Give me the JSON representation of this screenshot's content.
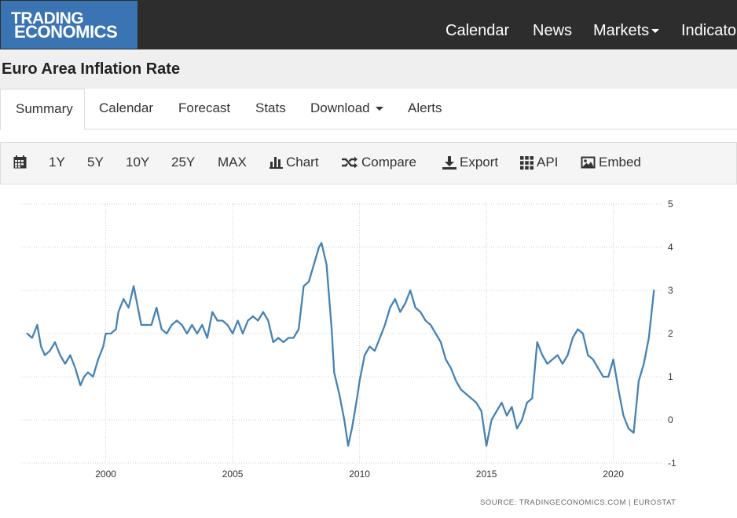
{
  "header": {
    "logo_line1": "TRADING",
    "logo_line2": "ECONOMICS",
    "nav": [
      "Calendar",
      "News",
      "Markets",
      "Indicato"
    ]
  },
  "page": {
    "title": "Euro Area Inflation Rate"
  },
  "tabs": [
    "Summary",
    "Calendar",
    "Forecast",
    "Stats",
    "Download",
    "Alerts"
  ],
  "toolbar": {
    "ranges": [
      "1Y",
      "5Y",
      "10Y",
      "25Y",
      "MAX"
    ],
    "chart": "Chart",
    "compare": "Compare",
    "export": "Export",
    "api": "API",
    "embed": "Embed"
  },
  "source": "SOURCE: TRADINGECONOMICS.COM  |  EUROSTAT",
  "colors": {
    "line": "#4682b4",
    "header_bg": "#2d2d2d",
    "logo_bg": "#3b74b2"
  },
  "chart_data": {
    "type": "line",
    "title": "",
    "xlabel": "",
    "ylabel": "",
    "xlim": [
      1996.7,
      2021.9
    ],
    "ylim": [
      -1,
      5
    ],
    "x_ticks": [
      2000,
      2005,
      2010,
      2015,
      2020
    ],
    "x_tick_labels": [
      "2000",
      "2005",
      "2010",
      "2015",
      "2020"
    ],
    "y_ticks": [
      -1,
      0,
      1,
      2,
      3,
      4,
      5
    ],
    "y_tick_labels": [
      "-1",
      "0",
      "1",
      "2",
      "3",
      "4",
      "5"
    ],
    "y_axis_position": "right",
    "grid": true,
    "series": [
      {
        "name": "",
        "x": [
          1996.9,
          1997.1,
          1997.3,
          1997.45,
          1997.6,
          1997.8,
          1998.0,
          1998.2,
          1998.4,
          1998.6,
          1998.8,
          1999.0,
          1999.15,
          1999.3,
          1999.5,
          1999.7,
          1999.9,
          2000.0,
          2000.2,
          2000.4,
          2000.5,
          2000.7,
          2000.9,
          2001.1,
          2001.3,
          2001.4,
          2001.6,
          2001.8,
          2002.0,
          2002.2,
          2002.4,
          2002.6,
          2002.8,
          2003.0,
          2003.2,
          2003.4,
          2003.6,
          2003.8,
          2004.0,
          2004.2,
          2004.4,
          2004.6,
          2004.8,
          2005.0,
          2005.2,
          2005.4,
          2005.6,
          2005.8,
          2006.0,
          2006.2,
          2006.4,
          2006.6,
          2006.8,
          2007.0,
          2007.2,
          2007.4,
          2007.6,
          2007.8,
          2008.0,
          2008.2,
          2008.4,
          2008.5,
          2008.7,
          2008.9,
          2009.0,
          2009.2,
          2009.4,
          2009.55,
          2009.7,
          2009.9,
          2010.0,
          2010.2,
          2010.4,
          2010.6,
          2010.8,
          2011.0,
          2011.2,
          2011.4,
          2011.6,
          2011.8,
          2012.0,
          2012.2,
          2012.4,
          2012.6,
          2012.8,
          2013.0,
          2013.2,
          2013.4,
          2013.6,
          2013.8,
          2014.0,
          2014.2,
          2014.4,
          2014.6,
          2014.8,
          2015.0,
          2015.2,
          2015.4,
          2015.6,
          2015.8,
          2016.0,
          2016.2,
          2016.4,
          2016.6,
          2016.8,
          2017.0,
          2017.2,
          2017.4,
          2017.6,
          2017.8,
          2018.0,
          2018.2,
          2018.4,
          2018.6,
          2018.8,
          2019.0,
          2019.2,
          2019.4,
          2019.6,
          2019.8,
          2020.0,
          2020.2,
          2020.4,
          2020.6,
          2020.8,
          2021.0,
          2021.2,
          2021.4,
          2021.6
        ],
        "y": [
          2.0,
          1.9,
          2.2,
          1.7,
          1.5,
          1.6,
          1.8,
          1.5,
          1.3,
          1.5,
          1.2,
          0.8,
          1.0,
          1.1,
          1.0,
          1.4,
          1.7,
          2.0,
          2.0,
          2.1,
          2.5,
          2.8,
          2.6,
          3.1,
          2.5,
          2.2,
          2.2,
          2.2,
          2.6,
          2.1,
          2.0,
          2.2,
          2.3,
          2.2,
          2.0,
          2.2,
          2.0,
          2.2,
          1.9,
          2.5,
          2.3,
          2.3,
          2.2,
          2.0,
          2.3,
          2.0,
          2.3,
          2.4,
          2.3,
          2.5,
          2.3,
          1.8,
          1.9,
          1.8,
          1.9,
          1.9,
          2.1,
          3.1,
          3.2,
          3.6,
          4.0,
          4.1,
          3.6,
          2.1,
          1.1,
          0.6,
          0.0,
          -0.6,
          -0.2,
          0.5,
          0.9,
          1.5,
          1.7,
          1.6,
          1.9,
          2.2,
          2.6,
          2.8,
          2.5,
          2.7,
          3.0,
          2.6,
          2.5,
          2.3,
          2.2,
          2.0,
          1.8,
          1.4,
          1.2,
          0.9,
          0.7,
          0.6,
          0.5,
          0.4,
          0.2,
          -0.6,
          0.0,
          0.2,
          0.4,
          0.1,
          0.3,
          -0.2,
          0.0,
          0.4,
          0.5,
          1.8,
          1.5,
          1.3,
          1.4,
          1.5,
          1.3,
          1.5,
          1.9,
          2.1,
          2.0,
          1.5,
          1.4,
          1.2,
          1.0,
          1.0,
          1.4,
          0.7,
          0.1,
          -0.2,
          -0.3,
          0.9,
          1.3,
          1.9,
          3.0
        ]
      }
    ]
  }
}
